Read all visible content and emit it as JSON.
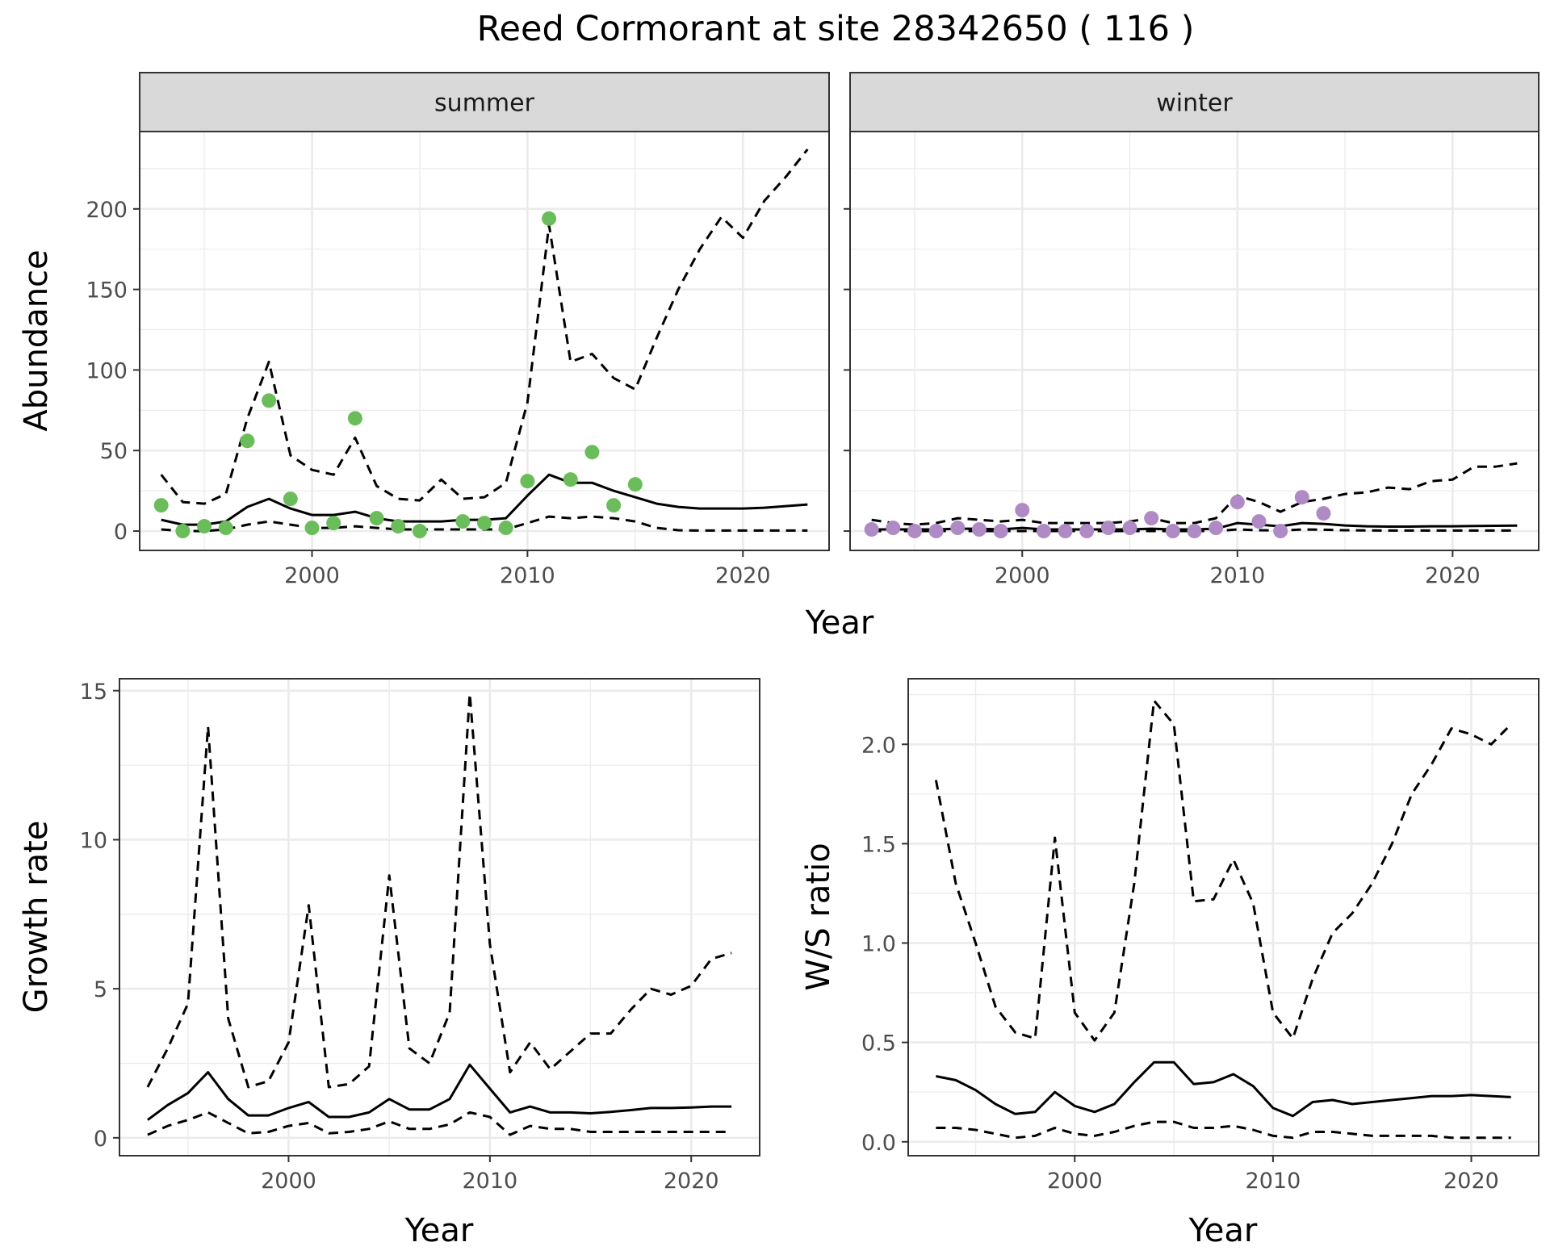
{
  "title": "Reed Cormorant at site 28342650 ( 116 )",
  "colors": {
    "summer_points": "#6abd5a",
    "winter_points": "#b08ac5",
    "lines": "#000000",
    "strip_bg": "#d9d9d9",
    "grid": "#ebebeb"
  },
  "chart_data": [
    {
      "type": "scatter",
      "panel": "summer",
      "facet_label": "summer",
      "xlabel": "Year",
      "ylabel": "Abundance",
      "xlim": [
        1992,
        2024
      ],
      "ylim": [
        -12,
        248
      ],
      "xticks": [
        2000,
        2010,
        2020
      ],
      "yticks": [
        0,
        50,
        100,
        150,
        200
      ],
      "grid": true,
      "points": {
        "x": [
          1993,
          1994,
          1995,
          1996,
          1997,
          1998,
          1999,
          2000,
          2001,
          2002,
          2003,
          2004,
          2005,
          2007,
          2008,
          2009,
          2010,
          2011,
          2012,
          2013,
          2014,
          2015
        ],
        "y": [
          16,
          0,
          3,
          2,
          56,
          81,
          20,
          2,
          5,
          70,
          8,
          3,
          0,
          6,
          5,
          2,
          31,
          194,
          32,
          49,
          16,
          29
        ]
      },
      "lines": [
        {
          "style": "solid",
          "x": [
            1993,
            1994,
            1995,
            1996,
            1997,
            1998,
            1999,
            2000,
            2001,
            2002,
            2003,
            2004,
            2005,
            2006,
            2007,
            2008,
            2009,
            2010,
            2011,
            2012,
            2013,
            2014,
            2015,
            2016,
            2017,
            2018,
            2019,
            2020,
            2021,
            2022,
            2023
          ],
          "y": [
            7,
            4,
            4,
            6,
            15,
            20,
            14,
            10,
            10,
            12,
            8,
            6,
            6,
            6,
            7,
            7,
            8,
            22,
            35,
            30,
            30,
            25,
            21,
            17,
            15,
            14,
            14,
            14,
            14.5,
            15.5,
            16.5
          ]
        },
        {
          "style": "dashed",
          "x": [
            1993,
            1994,
            1995,
            1996,
            1997,
            1998,
            1999,
            2000,
            2001,
            2002,
            2003,
            2004,
            2005,
            2006,
            2007,
            2008,
            2009,
            2010,
            2011,
            2012,
            2013,
            2014,
            2015,
            2016,
            2017,
            2018,
            2019,
            2020,
            2021,
            2022,
            2023
          ],
          "y": [
            35,
            18,
            17,
            23,
            70,
            105,
            47,
            38,
            35,
            58,
            28,
            20,
            19,
            32,
            20,
            21,
            30,
            80,
            190,
            105,
            110,
            95,
            88,
            120,
            150,
            175,
            195,
            182,
            205,
            220,
            237
          ]
        },
        {
          "style": "dashed",
          "x": [
            1993,
            1994,
            1995,
            1996,
            1997,
            1998,
            1999,
            2000,
            2001,
            2002,
            2003,
            2004,
            2005,
            2006,
            2007,
            2008,
            2009,
            2010,
            2011,
            2012,
            2013,
            2014,
            2015,
            2016,
            2017,
            2018,
            2019,
            2020,
            2021,
            2022,
            2023
          ],
          "y": [
            1,
            0,
            0,
            1,
            4,
            6,
            4,
            2,
            2,
            3,
            2,
            1,
            1,
            1,
            1,
            1,
            1,
            5,
            9,
            8,
            9,
            8,
            6,
            2,
            0.5,
            0.3,
            0.3,
            0.3,
            0.3,
            0.3,
            0.3
          ]
        }
      ]
    },
    {
      "type": "scatter",
      "panel": "winter",
      "facet_label": "winter",
      "xlabel": "Year",
      "ylabel": "Abundance",
      "xlim": [
        1992,
        2024
      ],
      "ylim": [
        -12,
        248
      ],
      "xticks": [
        2000,
        2010,
        2020
      ],
      "yticks": [],
      "grid": true,
      "points": {
        "x": [
          1993,
          1994,
          1995,
          1996,
          1997,
          1998,
          1999,
          2000,
          2001,
          2002,
          2003,
          2004,
          2005,
          2006,
          2007,
          2008,
          2009,
          2010,
          2011,
          2012,
          2013,
          2014
        ],
        "y": [
          1,
          2,
          0,
          0,
          2,
          1,
          0,
          13,
          0,
          0,
          0,
          2,
          2,
          8,
          0,
          0,
          2,
          18,
          6,
          0,
          21,
          11
        ]
      },
      "lines": [
        {
          "style": "solid",
          "x": [
            1993,
            1994,
            1995,
            1996,
            1997,
            1998,
            1999,
            2000,
            2001,
            2002,
            2003,
            2004,
            2005,
            2006,
            2007,
            2008,
            2009,
            2010,
            2011,
            2012,
            2013,
            2014,
            2015,
            2016,
            2017,
            2018,
            2019,
            2020,
            2021,
            2022,
            2023
          ],
          "y": [
            1,
            1,
            1,
            1,
            1.5,
            1.5,
            1,
            2,
            1,
            1,
            1,
            1,
            1,
            1.5,
            1,
            1,
            1.5,
            5,
            4,
            3,
            5,
            4.5,
            3.5,
            3,
            2.8,
            2.8,
            3,
            3,
            3.2,
            3.3,
            3.4
          ]
        },
        {
          "style": "dashed",
          "x": [
            1993,
            1994,
            1995,
            1996,
            1997,
            1998,
            1999,
            2000,
            2001,
            2002,
            2003,
            2004,
            2005,
            2006,
            2007,
            2008,
            2009,
            2010,
            2011,
            2012,
            2013,
            2014,
            2015,
            2016,
            2017,
            2018,
            2019,
            2020,
            2021,
            2022,
            2023
          ],
          "y": [
            7,
            5,
            4,
            5,
            8,
            7,
            6,
            7,
            5,
            5,
            5,
            5,
            6,
            8,
            5,
            5,
            8,
            22,
            18,
            12,
            18,
            20,
            23,
            24,
            27,
            26,
            31,
            32,
            40,
            40,
            42
          ]
        },
        {
          "style": "dashed",
          "x": [
            1993,
            1994,
            1995,
            1996,
            1997,
            1998,
            1999,
            2000,
            2001,
            2002,
            2003,
            2004,
            2005,
            2006,
            2007,
            2008,
            2009,
            2010,
            2011,
            2012,
            2013,
            2014,
            2015,
            2016,
            2017,
            2018,
            2019,
            2020,
            2021,
            2022,
            2023
          ],
          "y": [
            0,
            0,
            0,
            0,
            0,
            0,
            0,
            0,
            0,
            0,
            0,
            0,
            0,
            0,
            0,
            0,
            0,
            1,
            0.5,
            0.3,
            1,
            0.8,
            0.5,
            0.4,
            0.3,
            0.3,
            0.3,
            0.3,
            0.3,
            0.3,
            0.3
          ]
        }
      ]
    },
    {
      "type": "line",
      "panel": "growth",
      "xlabel": "Year",
      "ylabel": "Growth rate",
      "xlim": [
        1991.6,
        2023.4
      ],
      "ylim": [
        -0.6,
        15.4
      ],
      "xticks": [
        2000,
        2010,
        2020
      ],
      "yticks": [
        0,
        5,
        10,
        15
      ],
      "grid": true,
      "lines": [
        {
          "style": "solid",
          "x": [
            1993,
            1994,
            1995,
            1996,
            1997,
            1998,
            1999,
            2000,
            2001,
            2002,
            2003,
            2004,
            2005,
            2006,
            2007,
            2008,
            2009,
            2010,
            2011,
            2012,
            2013,
            2014,
            2015,
            2016,
            2017,
            2018,
            2019,
            2020,
            2021,
            2022
          ],
          "y": [
            0.6,
            1.1,
            1.5,
            2.2,
            1.3,
            0.75,
            0.75,
            1.0,
            1.2,
            0.7,
            0.7,
            0.85,
            1.3,
            0.95,
            0.95,
            1.3,
            2.45,
            1.65,
            0.85,
            1.05,
            0.85,
            0.85,
            0.82,
            0.87,
            0.93,
            1.0,
            1.0,
            1.02,
            1.05,
            1.05
          ]
        },
        {
          "style": "dashed",
          "x": [
            1993,
            1994,
            1995,
            1996,
            1997,
            1998,
            1999,
            2000,
            2001,
            2002,
            2003,
            2004,
            2005,
            2006,
            2007,
            2008,
            2009,
            2010,
            2011,
            2012,
            2013,
            2014,
            2015,
            2016,
            2017,
            2018,
            2019,
            2020,
            2021,
            2022
          ],
          "y": [
            1.7,
            3.0,
            4.5,
            13.8,
            4.0,
            1.7,
            1.9,
            3.2,
            7.8,
            1.7,
            1.8,
            2.4,
            8.8,
            3.0,
            2.5,
            4.2,
            14.9,
            6.5,
            2.2,
            3.2,
            2.3,
            2.9,
            3.5,
            3.5,
            4.3,
            5.0,
            4.8,
            5.1,
            6.0,
            6.2
          ]
        },
        {
          "style": "dashed",
          "x": [
            1993,
            1994,
            1995,
            1996,
            1997,
            1998,
            1999,
            2000,
            2001,
            2002,
            2003,
            2004,
            2005,
            2006,
            2007,
            2008,
            2009,
            2010,
            2011,
            2012,
            2013,
            2014,
            2015,
            2016,
            2017,
            2018,
            2019,
            2020,
            2021,
            2022
          ],
          "y": [
            0.1,
            0.4,
            0.6,
            0.85,
            0.5,
            0.15,
            0.2,
            0.4,
            0.5,
            0.15,
            0.2,
            0.3,
            0.55,
            0.3,
            0.3,
            0.45,
            0.85,
            0.7,
            0.1,
            0.4,
            0.3,
            0.3,
            0.2,
            0.2,
            0.2,
            0.2,
            0.2,
            0.2,
            0.2,
            0.2
          ]
        }
      ]
    },
    {
      "type": "line",
      "panel": "ws_ratio",
      "xlabel": "Year",
      "ylabel": "W/S ratio",
      "xlim": [
        1991.6,
        2023.4
      ],
      "ylim": [
        -0.07,
        2.33
      ],
      "xticks": [
        2000,
        2010,
        2020
      ],
      "yticks": [
        0.0,
        0.5,
        1.0,
        1.5,
        2.0
      ],
      "ytick_labels": [
        "0.0",
        "0.5",
        "1.0",
        "1.5",
        "2.0"
      ],
      "grid": true,
      "lines": [
        {
          "style": "solid",
          "x": [
            1993,
            1994,
            1995,
            1996,
            1997,
            1998,
            1999,
            2000,
            2001,
            2002,
            2003,
            2004,
            2005,
            2006,
            2007,
            2008,
            2009,
            2010,
            2011,
            2012,
            2013,
            2014,
            2015,
            2016,
            2017,
            2018,
            2019,
            2020,
            2021,
            2022
          ],
          "y": [
            0.33,
            0.31,
            0.26,
            0.19,
            0.14,
            0.15,
            0.25,
            0.18,
            0.15,
            0.19,
            0.3,
            0.4,
            0.4,
            0.29,
            0.3,
            0.34,
            0.28,
            0.17,
            0.13,
            0.2,
            0.21,
            0.19,
            0.2,
            0.21,
            0.22,
            0.23,
            0.23,
            0.235,
            0.23,
            0.225
          ]
        },
        {
          "style": "dashed",
          "x": [
            1993,
            1994,
            1995,
            1996,
            1997,
            1998,
            1999,
            2000,
            2001,
            2002,
            2003,
            2004,
            2005,
            2006,
            2007,
            2008,
            2009,
            2010,
            2011,
            2012,
            2013,
            2014,
            2015,
            2016,
            2017,
            2018,
            2019,
            2020,
            2021,
            2022
          ],
          "y": [
            1.82,
            1.3,
            1.0,
            0.68,
            0.55,
            0.52,
            1.53,
            0.65,
            0.51,
            0.65,
            1.3,
            2.22,
            2.1,
            1.21,
            1.22,
            1.42,
            1.2,
            0.65,
            0.52,
            0.82,
            1.05,
            1.15,
            1.3,
            1.5,
            1.75,
            1.9,
            2.08,
            2.05,
            2.0,
            2.1
          ]
        },
        {
          "style": "dashed",
          "x": [
            1993,
            1994,
            1995,
            1996,
            1997,
            1998,
            1999,
            2000,
            2001,
            2002,
            2003,
            2004,
            2005,
            2006,
            2007,
            2008,
            2009,
            2010,
            2011,
            2012,
            2013,
            2014,
            2015,
            2016,
            2017,
            2018,
            2019,
            2020,
            2021,
            2022
          ],
          "y": [
            0.07,
            0.07,
            0.06,
            0.04,
            0.02,
            0.03,
            0.07,
            0.04,
            0.03,
            0.05,
            0.08,
            0.1,
            0.1,
            0.07,
            0.07,
            0.08,
            0.06,
            0.03,
            0.02,
            0.05,
            0.05,
            0.04,
            0.03,
            0.03,
            0.03,
            0.03,
            0.02,
            0.02,
            0.02,
            0.02
          ]
        }
      ]
    }
  ]
}
